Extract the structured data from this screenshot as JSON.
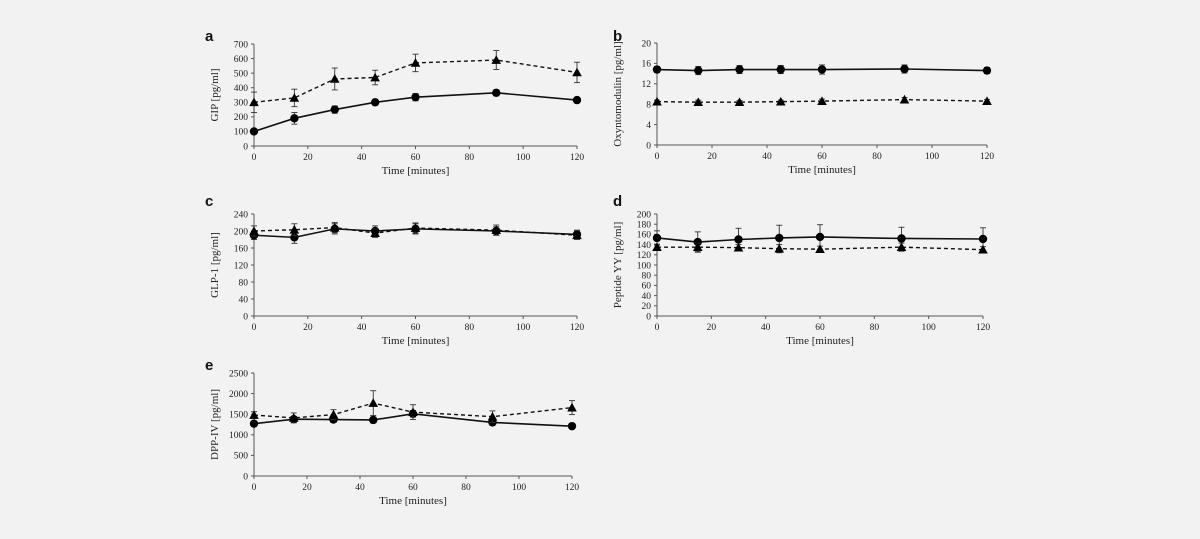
{
  "chart_data": [
    {
      "type": "line",
      "panel": "a",
      "xlabel": "Time [minutes]",
      "ylabel": "GIP [pg/ml]",
      "x": [
        0,
        15,
        30,
        45,
        60,
        90,
        120
      ],
      "xlim": [
        0,
        120
      ],
      "xticks": [
        0,
        20,
        40,
        60,
        80,
        100,
        120
      ],
      "ylim": [
        0,
        700
      ],
      "yticks": [
        0,
        100,
        200,
        300,
        400,
        500,
        600,
        700
      ],
      "series": [
        {
          "name": "circle-solid",
          "marker": "circle",
          "style": "solid",
          "values": [
            100,
            190,
            250,
            300,
            335,
            365,
            315
          ],
          "err": [
            0,
            40,
            25,
            20,
            25,
            20,
            0
          ]
        },
        {
          "name": "triangle-dashed",
          "marker": "triangle",
          "style": "dashed",
          "values": [
            300,
            330,
            460,
            470,
            570,
            590,
            505
          ],
          "err": [
            70,
            60,
            75,
            50,
            60,
            65,
            70
          ]
        }
      ]
    },
    {
      "type": "line",
      "panel": "b",
      "xlabel": "Time [minutes]",
      "ylabel": "Oxyntomodulin [pg/ml]",
      "x": [
        0,
        15,
        30,
        45,
        60,
        90,
        120
      ],
      "xlim": [
        0,
        120
      ],
      "xticks": [
        0,
        20,
        40,
        60,
        80,
        100,
        120
      ],
      "ylim": [
        0,
        20
      ],
      "yticks": [
        0,
        4,
        8,
        12,
        16,
        20
      ],
      "series": [
        {
          "name": "circle-solid",
          "marker": "circle",
          "style": "solid",
          "values": [
            14.8,
            14.6,
            14.8,
            14.8,
            14.8,
            14.9,
            14.6
          ],
          "err": [
            0.6,
            0.8,
            0.8,
            0.8,
            0.9,
            0.8,
            0.6
          ]
        },
        {
          "name": "triangle-dashed",
          "marker": "triangle",
          "style": "dashed",
          "values": [
            8.5,
            8.4,
            8.4,
            8.5,
            8.6,
            8.9,
            8.6
          ],
          "err": [
            0.3,
            0.4,
            0.3,
            0.3,
            0.4,
            0.4,
            0.3
          ]
        }
      ]
    },
    {
      "type": "line",
      "panel": "c",
      "xlabel": "Time [minutes]",
      "ylabel": "GLP-1 [pg/ml]",
      "x": [
        0,
        15,
        30,
        45,
        60,
        90,
        120
      ],
      "xlim": [
        0,
        120
      ],
      "xticks": [
        0,
        20,
        40,
        60,
        80,
        100,
        120
      ],
      "ylim": [
        0,
        240
      ],
      "yticks": [
        0,
        40,
        80,
        120,
        160,
        200,
        240
      ],
      "series": [
        {
          "name": "circle-solid",
          "marker": "circle",
          "style": "solid",
          "values": [
            190,
            185,
            205,
            200,
            205,
            200,
            192
          ],
          "err": [
            10,
            14,
            12,
            12,
            12,
            10,
            10
          ]
        },
        {
          "name": "triangle-dashed",
          "marker": "triangle",
          "style": "dashed",
          "values": [
            200,
            203,
            208,
            195,
            207,
            202,
            190
          ],
          "err": [
            12,
            14,
            12,
            10,
            12,
            12,
            10
          ]
        }
      ]
    },
    {
      "type": "line",
      "panel": "d",
      "xlabel": "Time [minutes]",
      "ylabel": "Peptide YY [pg/ml]",
      "x": [
        0,
        15,
        30,
        45,
        60,
        90,
        120
      ],
      "xlim": [
        0,
        120
      ],
      "xticks": [
        0,
        20,
        40,
        60,
        80,
        100,
        120
      ],
      "ylim": [
        0,
        200
      ],
      "yticks": [
        0,
        20,
        40,
        60,
        80,
        100,
        120,
        140,
        160,
        180,
        200
      ],
      "series": [
        {
          "name": "circle-solid",
          "marker": "circle",
          "style": "solid",
          "values": [
            153,
            145,
            150,
            153,
            155,
            152,
            151
          ],
          "err": [
            14,
            20,
            22,
            25,
            24,
            22,
            22
          ]
        },
        {
          "name": "triangle-dashed",
          "marker": "triangle",
          "style": "dashed",
          "values": [
            135,
            135,
            134,
            132,
            131,
            135,
            130
          ],
          "err": [
            6,
            8,
            6,
            8,
            6,
            8,
            6
          ]
        }
      ]
    },
    {
      "type": "line",
      "panel": "e",
      "xlabel": "Time [minutes]",
      "ylabel": "DPP-IV [pg/ml]",
      "x": [
        0,
        15,
        30,
        45,
        60,
        90,
        120
      ],
      "xlim": [
        0,
        120
      ],
      "xticks": [
        0,
        20,
        40,
        60,
        80,
        100,
        120
      ],
      "ylim": [
        0,
        2500
      ],
      "yticks": [
        0,
        500,
        1000,
        1500,
        2000,
        2500
      ],
      "series": [
        {
          "name": "circle-solid",
          "marker": "circle",
          "style": "solid",
          "values": [
            1270,
            1380,
            1370,
            1360,
            1510,
            1300,
            1210
          ],
          "err": [
            50,
            60,
            70,
            70,
            80,
            70,
            50
          ]
        },
        {
          "name": "triangle-dashed",
          "marker": "triangle",
          "style": "dashed",
          "values": [
            1480,
            1410,
            1490,
            1770,
            1550,
            1440,
            1660
          ],
          "err": [
            80,
            120,
            120,
            300,
            180,
            140,
            170
          ]
        }
      ]
    }
  ]
}
